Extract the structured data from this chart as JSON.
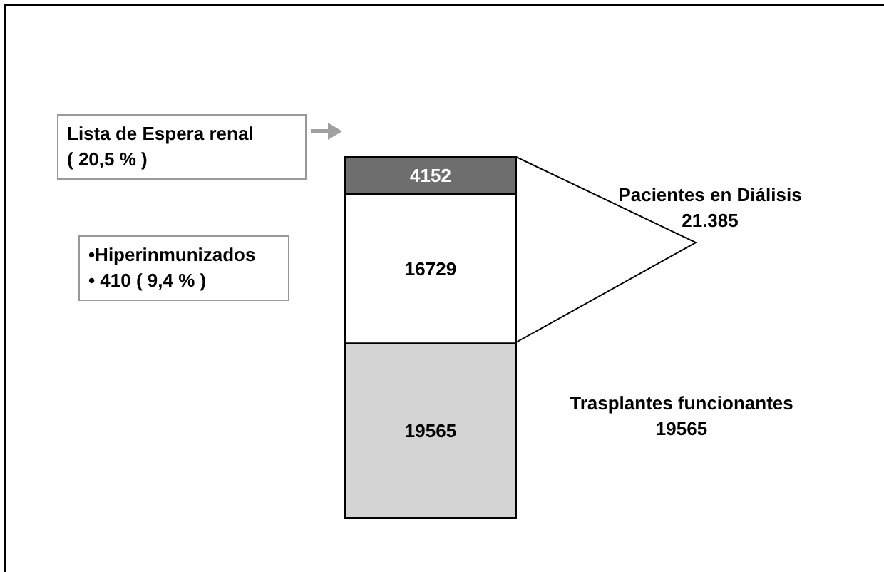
{
  "chart_data": {
    "type": "bar",
    "stacked": true,
    "categories": [
      null
    ],
    "series": [
      {
        "color": "#d4d4d4",
        "values": [
          19565
        ]
      },
      {
        "color": "#ffffff",
        "values": [
          16729
        ]
      },
      {
        "color": "#6e6e6e",
        "values": [
          4152
        ]
      }
    ],
    "data_labels": true,
    "tick_labels": false,
    "annotations": [
      "Lista de Espera renal\n( 20,5 % )",
      "•Hiperinmunizados\n•  410 ( 9,4 % )",
      "Pacientes en Diálisis\n21.385",
      "Trasplantes funcionantes\n19565"
    ]
  }
}
